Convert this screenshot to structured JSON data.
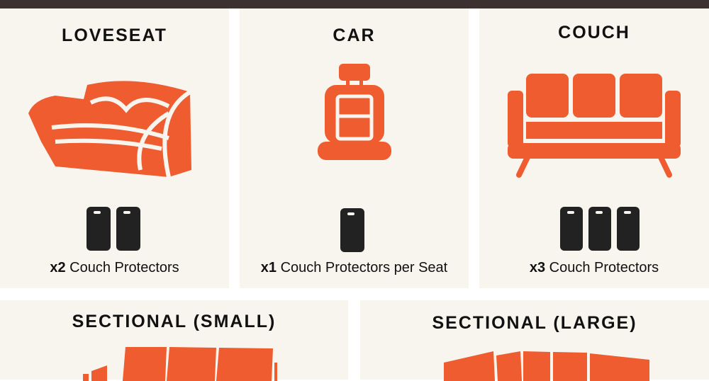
{
  "accent_color": "#ee5c2f",
  "cards": [
    {
      "title": "LOVESEAT",
      "count": "x2",
      "caption": "Couch Protectors",
      "protectors": 2
    },
    {
      "title": "CAR",
      "count": "x1",
      "caption": "Couch Protectors per Seat",
      "protectors": 1
    },
    {
      "title": "COUCH",
      "count": "x3",
      "caption": "Couch Protectors",
      "protectors": 3
    },
    {
      "title": "SECTIONAL (SMALL)"
    },
    {
      "title": "SECTIONAL (LARGE)"
    }
  ]
}
